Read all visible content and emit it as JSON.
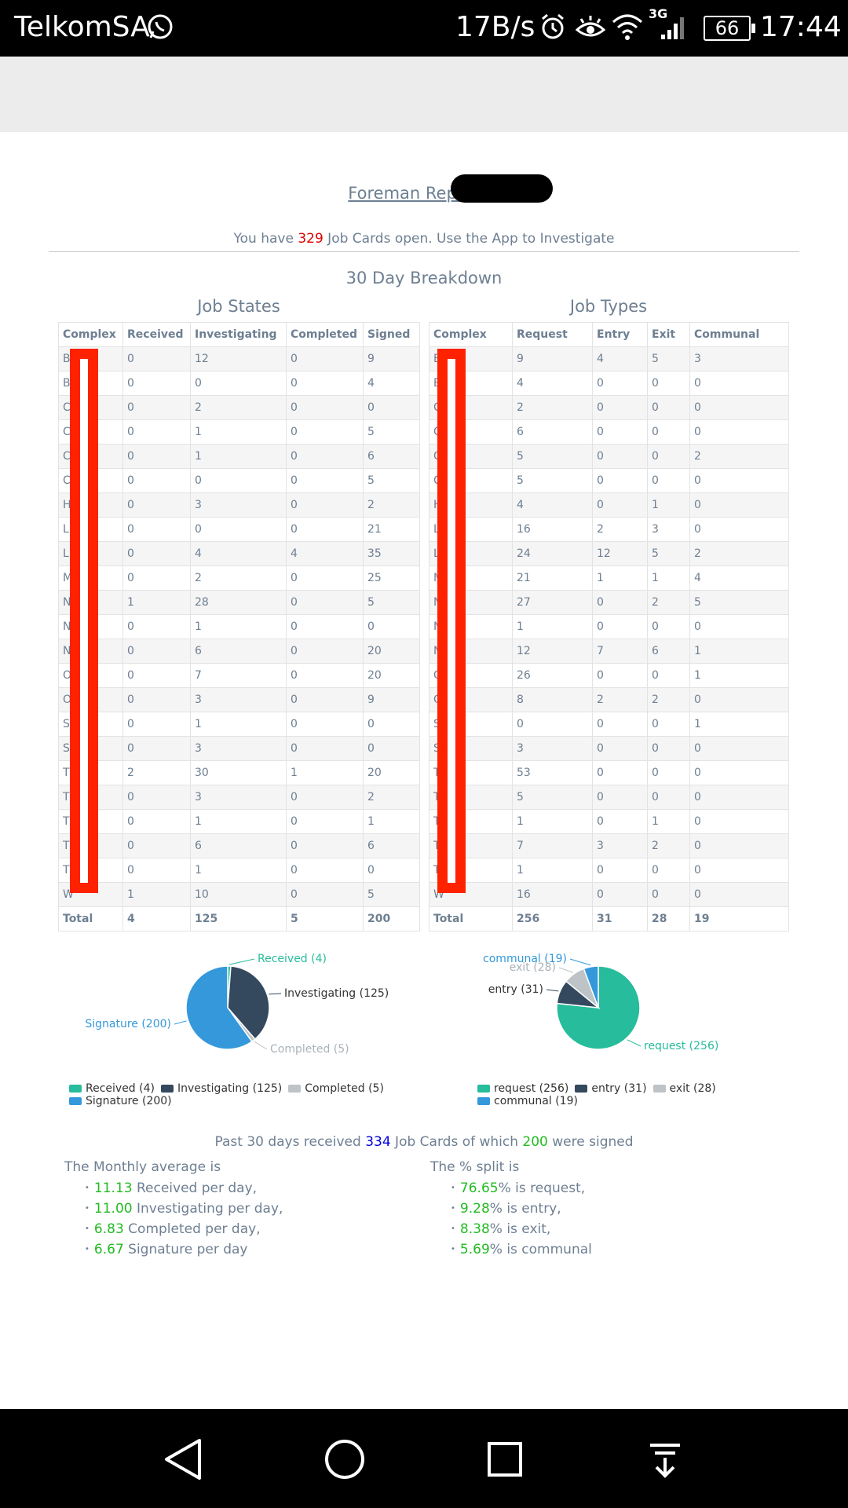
{
  "status_bar": {
    "carrier": "TelkomSA",
    "speed": "17B/s",
    "network": "3G",
    "battery": "66",
    "time": "17:44"
  },
  "page": {
    "title": "Foreman Reports -",
    "open_prefix": "You have ",
    "open_count": "329",
    "open_suffix": " Job Cards open. Use the App to Investigate",
    "breakdown_title": "30 Day Breakdown"
  },
  "job_states": {
    "title": "Job States",
    "headers": [
      "Complex",
      "Received",
      "Investigating",
      "Completed",
      "Signed"
    ],
    "rows": [
      [
        "B",
        "0",
        "12",
        "0",
        "9"
      ],
      [
        "B",
        "0",
        "0",
        "0",
        "4"
      ],
      [
        "C",
        "0",
        "2",
        "0",
        "0"
      ],
      [
        "C",
        "0",
        "1",
        "0",
        "5"
      ],
      [
        "C",
        "0",
        "1",
        "0",
        "6"
      ],
      [
        "C",
        "0",
        "0",
        "0",
        "5"
      ],
      [
        "H",
        "0",
        "3",
        "0",
        "2"
      ],
      [
        "L",
        "0",
        "0",
        "0",
        "21"
      ],
      [
        "L",
        "0",
        "4",
        "4",
        "35"
      ],
      [
        "M",
        "0",
        "2",
        "0",
        "25"
      ],
      [
        "N",
        "1",
        "28",
        "0",
        "5"
      ],
      [
        "N",
        "0",
        "1",
        "0",
        "0"
      ],
      [
        "N",
        "0",
        "6",
        "0",
        "20"
      ],
      [
        "O",
        "0",
        "7",
        "0",
        "20"
      ],
      [
        "O",
        "0",
        "3",
        "0",
        "9"
      ],
      [
        "S",
        "0",
        "1",
        "0",
        "0"
      ],
      [
        "S",
        "0",
        "3",
        "0",
        "0"
      ],
      [
        "T",
        "2",
        "30",
        "1",
        "20"
      ],
      [
        "T",
        "0",
        "3",
        "0",
        "2"
      ],
      [
        "T",
        "0",
        "1",
        "0",
        "1"
      ],
      [
        "T",
        "0",
        "6",
        "0",
        "6"
      ],
      [
        "T",
        "0",
        "1",
        "0",
        "0"
      ],
      [
        "W",
        "1",
        "10",
        "0",
        "5"
      ]
    ],
    "totals": [
      "Total",
      "4",
      "125",
      "5",
      "200"
    ]
  },
  "job_types": {
    "title": "Job Types",
    "headers": [
      "Complex",
      "Request",
      "Entry",
      "Exit",
      "Communal"
    ],
    "rows": [
      [
        "B",
        "9",
        "4",
        "5",
        "3"
      ],
      [
        "B",
        "4",
        "0",
        "0",
        "0"
      ],
      [
        "C",
        "2",
        "0",
        "0",
        "0"
      ],
      [
        "C",
        "6",
        "0",
        "0",
        "0"
      ],
      [
        "C",
        "5",
        "0",
        "0",
        "2"
      ],
      [
        "C",
        "5",
        "0",
        "0",
        "0"
      ],
      [
        "H",
        "4",
        "0",
        "1",
        "0"
      ],
      [
        "L",
        "16",
        "2",
        "3",
        "0"
      ],
      [
        "L",
        "24",
        "12",
        "5",
        "2"
      ],
      [
        "M",
        "21",
        "1",
        "1",
        "4"
      ],
      [
        "N",
        "27",
        "0",
        "2",
        "5"
      ],
      [
        "N  M",
        "1",
        "0",
        "0",
        "0"
      ],
      [
        "N",
        "12",
        "7",
        "6",
        "1"
      ],
      [
        "O",
        "26",
        "0",
        "0",
        "1"
      ],
      [
        "O",
        "8",
        "2",
        "2",
        "0"
      ],
      [
        "S",
        "0",
        "0",
        "0",
        "1"
      ],
      [
        "S",
        "3",
        "0",
        "0",
        "0"
      ],
      [
        "T",
        "53",
        "0",
        "0",
        "0"
      ],
      [
        "T",
        "5",
        "0",
        "0",
        "0"
      ],
      [
        "T",
        "1",
        "0",
        "1",
        "0"
      ],
      [
        "T",
        "7",
        "3",
        "2",
        "0"
      ],
      [
        "T",
        "1",
        "0",
        "0",
        "0"
      ],
      [
        "W",
        "16",
        "0",
        "0",
        "0"
      ]
    ],
    "totals": [
      "Total",
      "256",
      "31",
      "28",
      "19"
    ]
  },
  "pie_states": {
    "slices": [
      {
        "label": "Received (4)",
        "value": 4,
        "color": "#27bc9b"
      },
      {
        "label": "Investigating (125)",
        "value": 125,
        "color": "#34495e"
      },
      {
        "label": "Completed (5)",
        "value": 5,
        "color": "#bdc3c7"
      },
      {
        "label": "Signature (200)",
        "value": 200,
        "color": "#3498db"
      }
    ]
  },
  "pie_types": {
    "slices": [
      {
        "label": "request (256)",
        "value": 256,
        "color": "#27bc9b"
      },
      {
        "label": "entry (31)",
        "value": 31,
        "color": "#34495e"
      },
      {
        "label": "exit (28)",
        "value": 28,
        "color": "#bdc3c7"
      },
      {
        "label": "communal (19)",
        "value": 19,
        "color": "#3498db"
      }
    ]
  },
  "summary": {
    "prefix": "Past 30 days received ",
    "received": "334",
    "middle": " Job Cards of which ",
    "signed": "200",
    "suffix": " were signed"
  },
  "monthly": {
    "title": "The Monthly average is",
    "items": [
      {
        "value": "11.13",
        "text": " Received per day,"
      },
      {
        "value": "11.00",
        "text": " Investigating per day,"
      },
      {
        "value": "6.83",
        "text": " Completed per day,"
      },
      {
        "value": "6.67",
        "text": " Signature per day"
      }
    ]
  },
  "split": {
    "title": "The % split is",
    "items": [
      {
        "value": "76.65",
        "text": "% is request,"
      },
      {
        "value": "9.28",
        "text": "% is entry,"
      },
      {
        "value": "8.38",
        "text": "% is exit,"
      },
      {
        "value": "5.69",
        "text": "% is communal"
      }
    ]
  }
}
